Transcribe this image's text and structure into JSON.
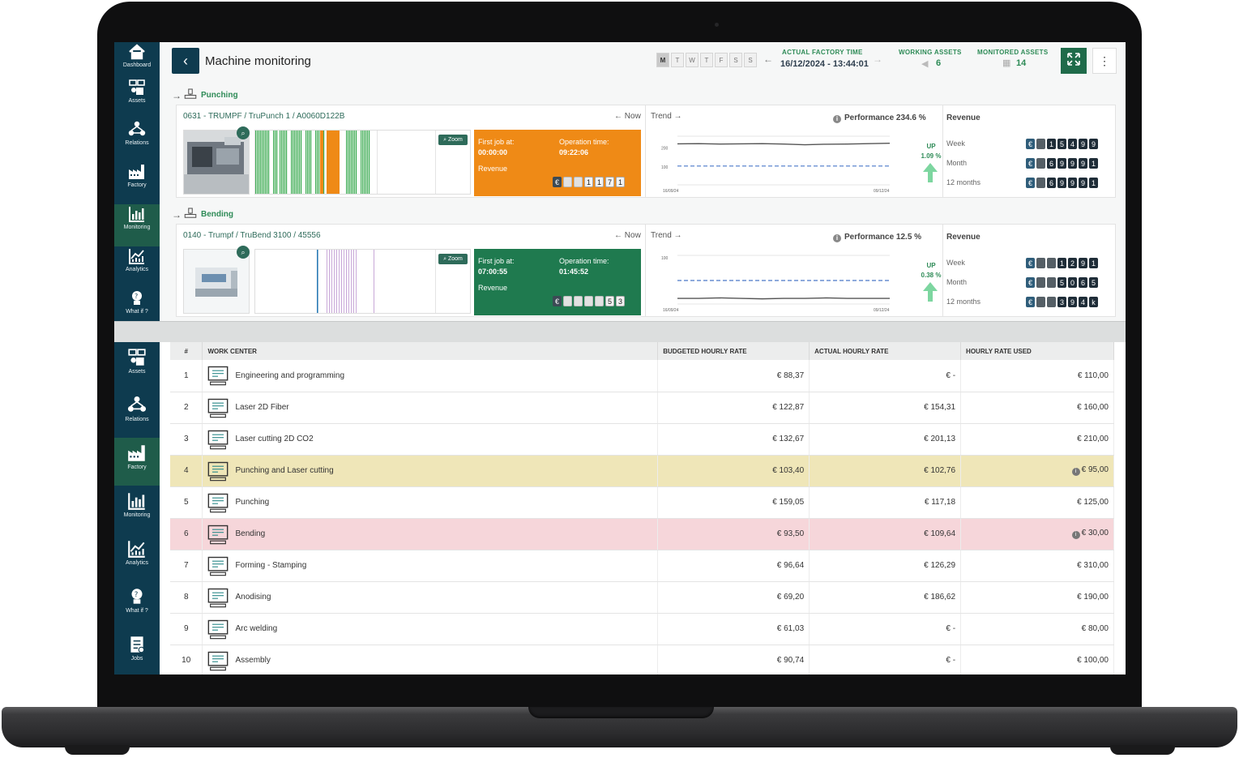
{
  "header": {
    "title": "Machine monitoring",
    "days": [
      "M",
      "T",
      "W",
      "T",
      "F",
      "S",
      "S"
    ],
    "selected_day": "M",
    "factory_time_label": "ACTUAL FACTORY TIME",
    "factory_time_value": "16/12/2024 - 13:44:01",
    "working_assets_label": "WORKING ASSETS",
    "working_assets_value": "6",
    "monitored_assets_label": "MONITORED ASSETS",
    "monitored_assets_value": "14"
  },
  "sidebar_top": [
    {
      "label": "Dashboard",
      "icon": "home-icon"
    },
    {
      "label": "Assets",
      "icon": "assets-icon"
    },
    {
      "label": "Relations",
      "icon": "relations-icon"
    },
    {
      "label": "Factory",
      "icon": "factory-icon"
    },
    {
      "label": "Monitoring",
      "icon": "monitoring-icon",
      "active": true
    },
    {
      "label": "Analytics",
      "icon": "analytics-icon"
    },
    {
      "label": "What if ?",
      "icon": "whatif-icon"
    }
  ],
  "sidebar_bottom": [
    {
      "label": "Assets",
      "icon": "assets-icon"
    },
    {
      "label": "Relations",
      "icon": "relations-icon"
    },
    {
      "label": "Factory",
      "icon": "factory-icon",
      "active": true
    },
    {
      "label": "Monitoring",
      "icon": "monitoring-icon"
    },
    {
      "label": "Analytics",
      "icon": "analytics-icon"
    },
    {
      "label": "What if ?",
      "icon": "whatif-icon"
    },
    {
      "label": "Jobs",
      "icon": "jobs-icon"
    }
  ],
  "machines": [
    {
      "section": "Punching",
      "name": "0631 - TRUMPF / TruPunch 1 / A0060D122B",
      "now": "Now",
      "trend": "Trend",
      "zoom": "Zoom",
      "status_color": "#ef8a16",
      "first_job_label": "First job at:",
      "first_job_value": "00:00:00",
      "op_time_label": "Operation time:",
      "op_time_value": "09:22:06",
      "revenue_label": "Revenue",
      "job_digits": [
        "€",
        "",
        "",
        "1",
        "1",
        "7",
        "1"
      ],
      "performance": "Performance 234.6 %",
      "trend_y_top": "200",
      "trend_y_mid": "100",
      "trend_x_start": "16/09/24",
      "trend_x_end": "09/12/24",
      "trend_line": [
        218,
        219,
        217,
        218,
        219,
        217,
        213,
        216,
        217,
        219,
        221
      ],
      "trend_baseline": 100,
      "up_label": "UP",
      "up_pct": "1.09 %",
      "revenue_title": "Revenue",
      "revenue": [
        {
          "label": "Week",
          "digits": [
            "€",
            "",
            "1",
            "5",
            "4",
            "9",
            "9"
          ]
        },
        {
          "label": "Month",
          "digits": [
            "€",
            "",
            "6",
            "9",
            "9",
            "9",
            "1"
          ]
        },
        {
          "label": "12 months",
          "digits": [
            "€",
            "",
            "6",
            "9",
            "9",
            "9",
            "1"
          ]
        }
      ]
    },
    {
      "section": "Bending",
      "name": "0140 - Trumpf / TruBend 3100 / 45556",
      "now": "Now",
      "trend": "Trend",
      "zoom": "Zoom",
      "status_color": "#1f7a4f",
      "first_job_label": "First job at:",
      "first_job_value": "07:00:55",
      "op_time_label": "Operation time:",
      "op_time_value": "01:45:52",
      "revenue_label": "Revenue",
      "job_digits": [
        "€",
        "",
        "",
        "",
        "",
        "5",
        "3"
      ],
      "performance": "Performance 12.5 %",
      "trend_y_top": "100",
      "trend_y_mid": "",
      "trend_x_start": "16/09/24",
      "trend_x_end": "09/12/24",
      "trend_line": [
        12,
        12,
        13,
        12,
        11,
        12,
        12,
        13,
        12,
        12,
        12
      ],
      "trend_baseline": 50,
      "up_label": "UP",
      "up_pct": "0.38 %",
      "revenue_title": "Revenue",
      "revenue": [
        {
          "label": "Week",
          "digits": [
            "€",
            "",
            "",
            "1",
            "2",
            "9",
            "1"
          ]
        },
        {
          "label": "Month",
          "digits": [
            "€",
            "",
            "",
            "5",
            "0",
            "6",
            "5"
          ]
        },
        {
          "label": "12 months",
          "digits": [
            "€",
            "",
            "",
            "3",
            "9",
            "4",
            "k"
          ]
        }
      ]
    }
  ],
  "table": {
    "columns": [
      "#",
      "WORK CENTER",
      "BUDGETED HOURLY RATE",
      "ACTUAL HOURLY RATE",
      "HOURLY RATE USED"
    ],
    "rows": [
      {
        "n": "1",
        "name": "Engineering and programming",
        "icon": "engineering-icon",
        "budget": "€ 88,37",
        "actual": "€ -",
        "used": "€ 110,00"
      },
      {
        "n": "2",
        "name": "Laser 2D Fiber",
        "icon": "laser-fiber-icon",
        "budget": "€ 122,87",
        "actual": "€ 154,31",
        "used": "€ 160,00"
      },
      {
        "n": "3",
        "name": "Laser cutting 2D CO2",
        "icon": "laser-co2-icon",
        "budget": "€ 132,67",
        "actual": "€ 201,13",
        "used": "€ 210,00"
      },
      {
        "n": "4",
        "name": "Punching and Laser cutting",
        "icon": "punch-laser-icon",
        "budget": "€ 103,40",
        "actual": "€ 102,76",
        "used": "€ 95,00",
        "highlight": "yellow",
        "info": true
      },
      {
        "n": "5",
        "name": "Punching",
        "icon": "punching-icon",
        "budget": "€ 159,05",
        "actual": "€ 117,18",
        "used": "€ 125,00"
      },
      {
        "n": "6",
        "name": "Bending",
        "icon": "bending-icon",
        "budget": "€ 93,50",
        "actual": "€ 109,64",
        "used": "€ 30,00",
        "highlight": "red",
        "info": true
      },
      {
        "n": "7",
        "name": "Forming - Stamping",
        "icon": "forming-icon",
        "budget": "€ 96,64",
        "actual": "€ 126,29",
        "used": "€ 310,00"
      },
      {
        "n": "8",
        "name": "Anodising",
        "icon": "anodising-icon",
        "budget": "€ 69,20",
        "actual": "€ 186,62",
        "used": "€ 190,00"
      },
      {
        "n": "9",
        "name": "Arc welding",
        "icon": "welding-icon",
        "budget": "€ 61,03",
        "actual": "€ -",
        "used": "€ 80,00"
      },
      {
        "n": "10",
        "name": "Assembly",
        "icon": "assembly-icon",
        "budget": "€ 90,74",
        "actual": "€ -",
        "used": "€ 100,00"
      }
    ]
  }
}
